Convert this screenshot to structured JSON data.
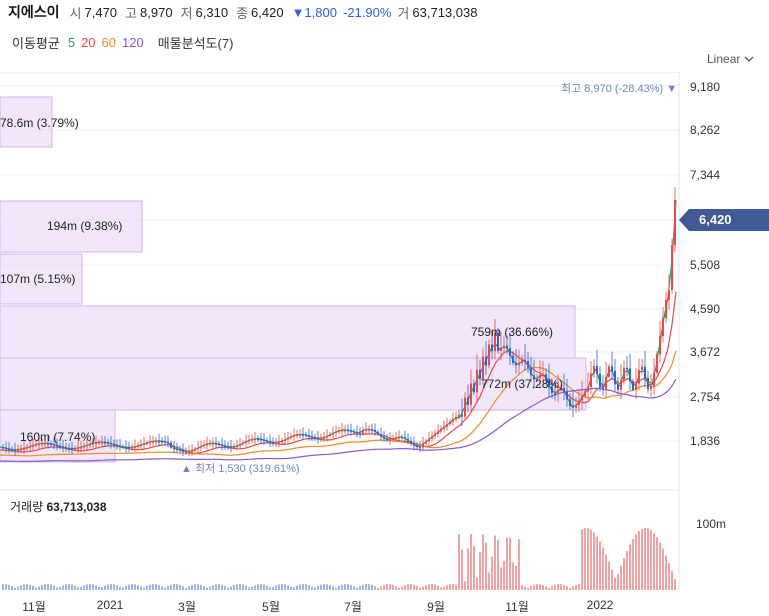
{
  "header": {
    "stock_name": "지에스이",
    "open_label": "시",
    "open_value": "7,470",
    "high_label": "고",
    "high_value": "8,970",
    "low_label": "저",
    "low_value": "6,310",
    "close_label": "종",
    "close_value": "6,420",
    "change": "▼1,800",
    "change_pct": "-21.90%",
    "volume_label": "거",
    "volume_value": "63,713,038"
  },
  "moving_avg": {
    "label": "이동평균",
    "periods": [
      {
        "text": "5",
        "color": "#26a65b"
      },
      {
        "text": "20",
        "color": "#e84a4a"
      },
      {
        "text": "60",
        "color": "#f08a2c"
      },
      {
        "text": "120",
        "color": "#8a5bd6"
      }
    ],
    "volume_profile_label": "매물분석도(7)"
  },
  "scale_toggle": {
    "label": "Linear",
    "icon": "chevron-down-icon"
  },
  "price_axis": [
    "9,180",
    "8,262",
    "7,344",
    "6,420",
    "5,508",
    "4,590",
    "3,672",
    "2,754",
    "1,836"
  ],
  "current_price_badge": "6,420",
  "high_marker": "최고 8,970 (-28.43%)",
  "low_marker": "최저 1,530 (319.61%)",
  "volume_profile": [
    {
      "label": "78.6m (3.79%)"
    },
    {
      "label": "194m (9.38%)"
    },
    {
      "label": "107m (5.15%)"
    },
    {
      "label": "759m (36.66%)"
    },
    {
      "label": "772m (37.28%)"
    },
    {
      "label": "160m (7.74%)"
    }
  ],
  "volume_panel": {
    "label": "거래량",
    "value": "63,713,038",
    "scale_label": "100m"
  },
  "x_axis": [
    "11월",
    "2021",
    "3월",
    "5월",
    "7월",
    "9월",
    "11월",
    "2022"
  ],
  "colors": {
    "up": "#e84a4a",
    "down": "#2f63d6",
    "profile": "#e8d4f5",
    "profile_border": "#d4b3ec",
    "badge": "#3f5a94"
  }
}
